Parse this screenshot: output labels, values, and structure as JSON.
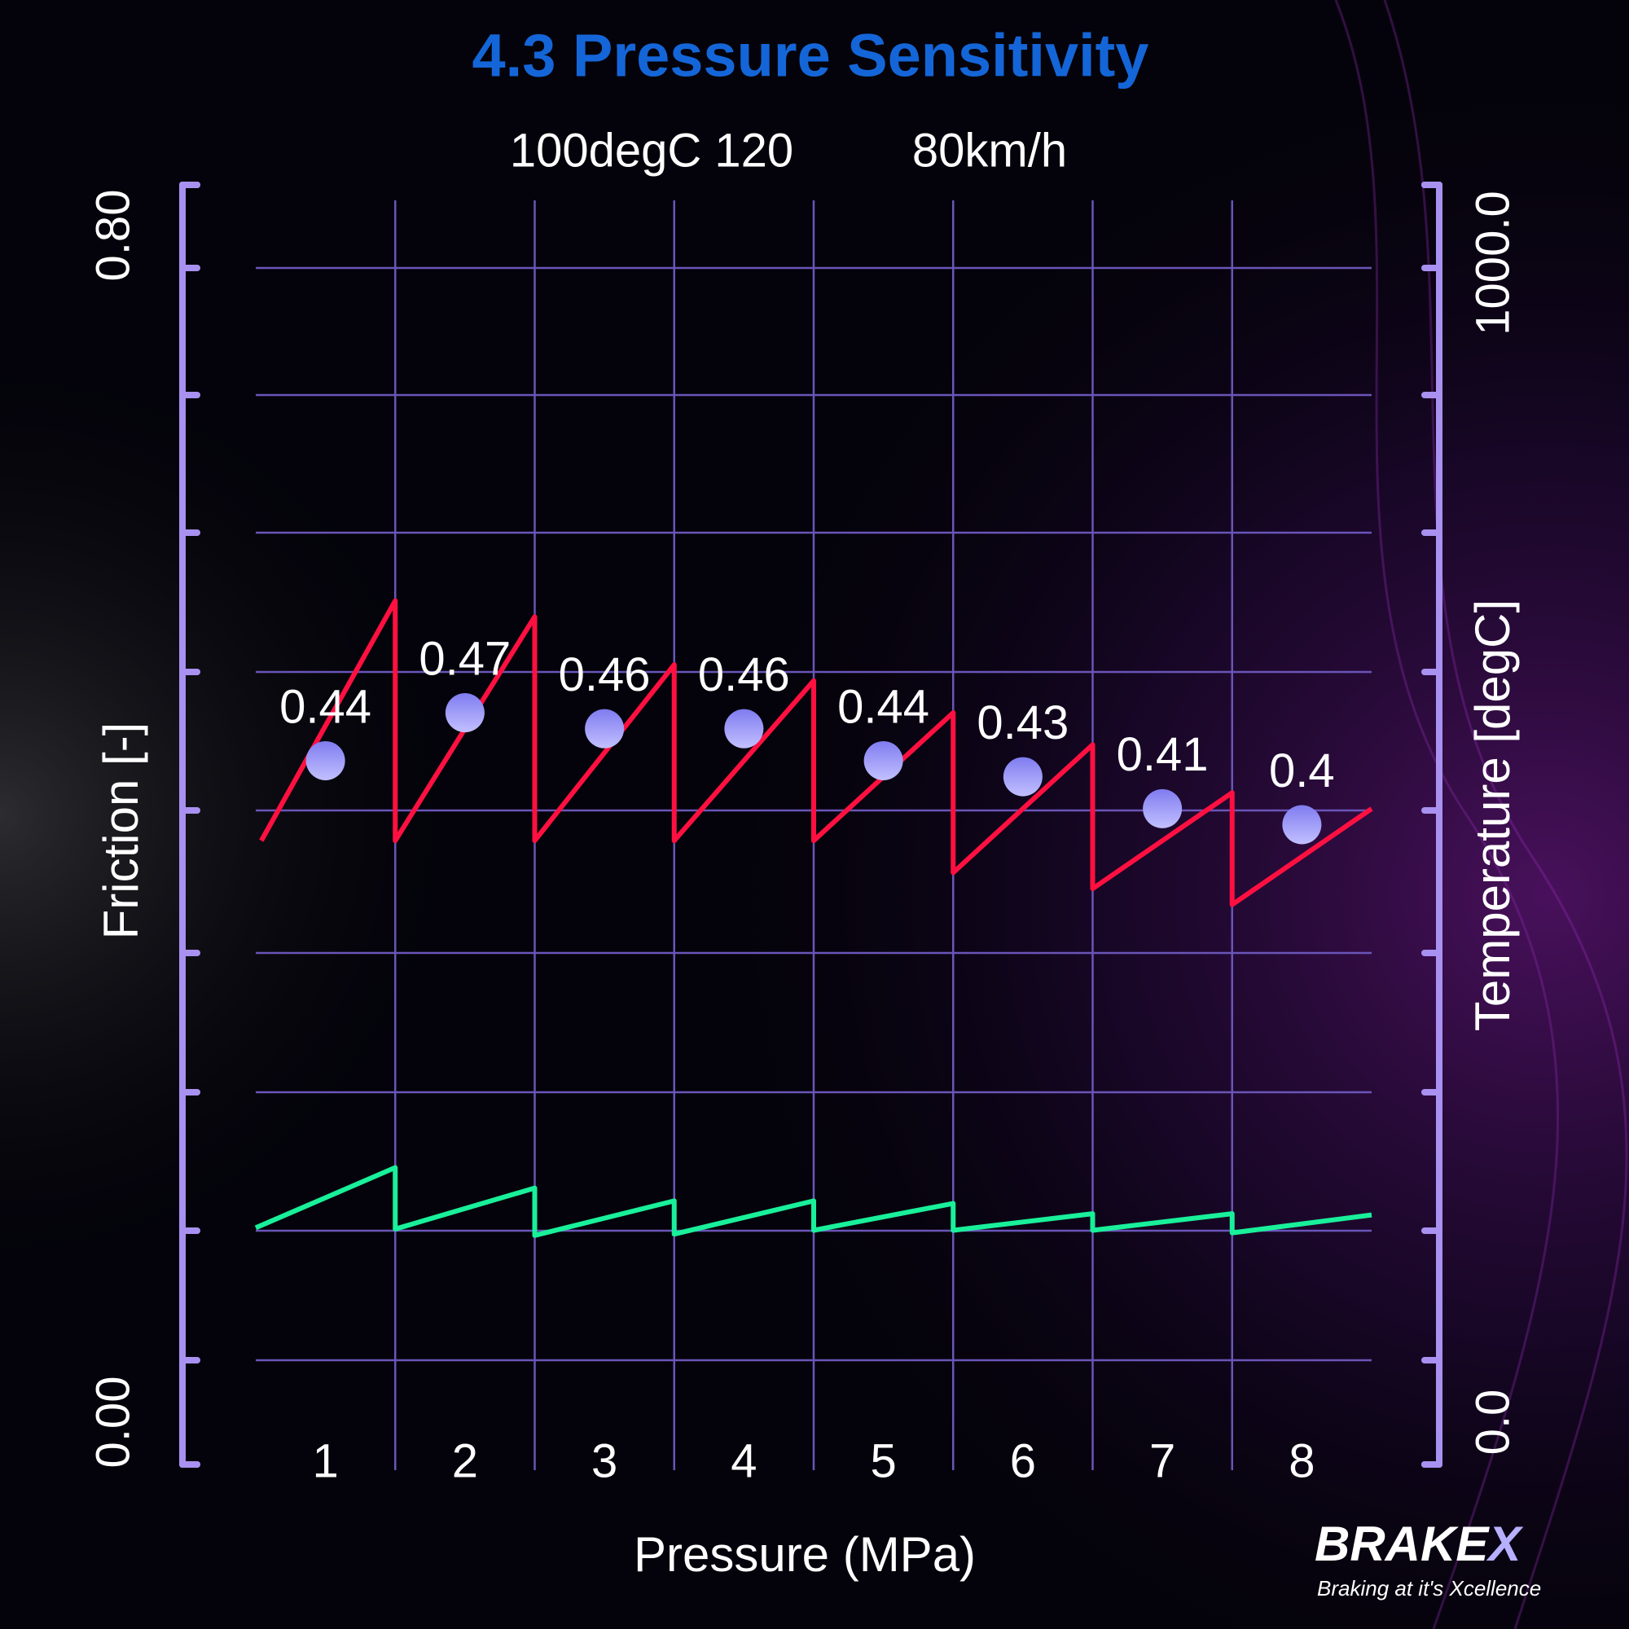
{
  "chart_data": {
    "type": "line",
    "title": "4.3 Pressure Sensitivity",
    "subtitle": [
      "100degC 120",
      "80km/h"
    ],
    "x_label": "Pressure (MPa)",
    "y_label": "Friction [-]",
    "y2_label": "Temperature [degC]",
    "categories": [
      "1",
      "2",
      "3",
      "4",
      "5",
      "6",
      "7",
      "8"
    ],
    "xlim": [
      0.5,
      8.5
    ],
    "ylim": [
      0,
      0.8
    ],
    "yticks": [
      {
        "value": 0,
        "label": "0.00"
      },
      {
        "value": 0.8,
        "label": "0.80"
      }
    ],
    "y2lim": [
      0,
      1000
    ],
    "y2ticks": [
      {
        "value": 0,
        "label": "0.0"
      },
      {
        "value": 1000,
        "label": "1000.0"
      }
    ],
    "series": [
      {
        "kind": "points",
        "color": "#a09ef8",
        "values": [
          0.44,
          0.47,
          0.46,
          0.46,
          0.44,
          0.43,
          0.41,
          0.4
        ]
      },
      {
        "kind": "trace",
        "color": "#ff1040",
        "x": [
          0.54,
          1.5,
          1.5,
          2.5,
          2.5,
          3.5,
          3.5,
          4.5,
          4.5,
          5.5,
          5.5,
          6.5,
          6.5,
          7.5,
          7.5,
          8.5
        ],
        "values": [
          0.39,
          0.54,
          0.39,
          0.53,
          0.39,
          0.5,
          0.39,
          0.49,
          0.39,
          0.47,
          0.37,
          0.45,
          0.36,
          0.42,
          0.35,
          0.41
        ]
      },
      {
        "kind": "trace",
        "color": "#19f09a",
        "axis": "y2",
        "x": [
          0.5,
          1.5,
          1.5,
          2.5,
          2.5,
          3.5,
          3.5,
          4.5,
          4.5,
          5.5,
          5.5,
          6.5,
          6.5,
          7.5,
          7.5,
          8.5
        ],
        "values": [
          185,
          232,
          184,
          216,
          179,
          206,
          180,
          206,
          183,
          204,
          183,
          196,
          183,
          196,
          181,
          195
        ]
      }
    ],
    "axis_color": "#a891f0",
    "grid": true,
    "logo": [
      "BRAKE",
      "X"
    ],
    "logo_tagline": "Braking at it's Xcellence"
  }
}
